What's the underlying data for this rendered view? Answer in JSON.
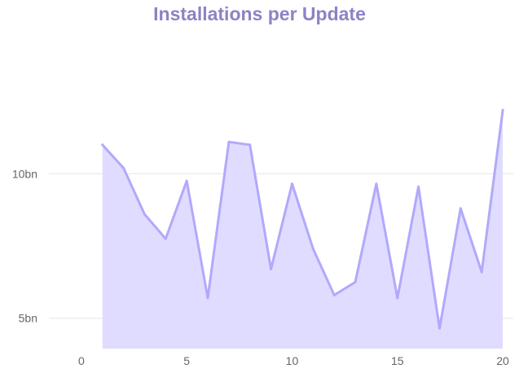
{
  "chart_data": {
    "type": "area",
    "title": "Installations per Update",
    "xlabel": "",
    "ylabel": "",
    "x": [
      1,
      2,
      3,
      4,
      5,
      6,
      7,
      8,
      9,
      10,
      11,
      12,
      13,
      14,
      15,
      16,
      17,
      18,
      19,
      20
    ],
    "series": [
      {
        "values": [
          11.0,
          10.2,
          8.6,
          7.75,
          9.75,
          5.7,
          11.1,
          11.0,
          6.7,
          9.65,
          7.4,
          5.8,
          6.25,
          9.65,
          5.7,
          9.55,
          4.65,
          8.8,
          6.6,
          12.2
        ]
      }
    ],
    "xlim": [
      -1,
      20.5
    ],
    "ylim": [
      3.95,
      14.6
    ],
    "x_ticks": [
      0,
      5,
      10,
      15,
      20
    ],
    "y_ticks": [
      5,
      10
    ],
    "x_tick_labels": [
      "0",
      "5",
      "10",
      "15",
      "20"
    ],
    "y_tick_labels": [
      "5bn",
      "10bn"
    ],
    "grid": "horizontal",
    "colors": {
      "line": "#b1a9fb",
      "fill": "#e0dcff",
      "grid": "#e6e6e6",
      "tick_text": "#666666",
      "title": "#8a84c4"
    }
  }
}
